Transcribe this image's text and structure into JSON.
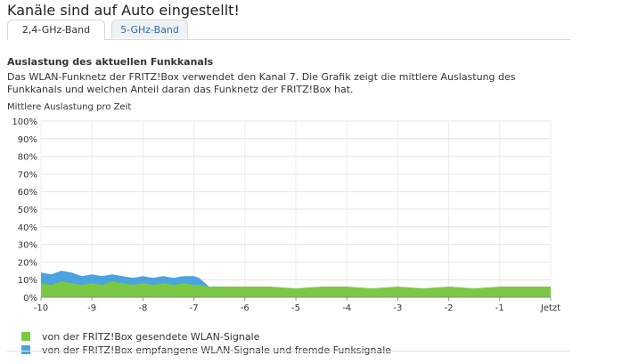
{
  "page": {
    "title": "Kanäle sind auf Auto eingestellt!"
  },
  "tabs": [
    {
      "label": "2,4-GHz-Band",
      "active": true
    },
    {
      "label": "5-GHz-Band",
      "active": false
    }
  ],
  "section": {
    "heading": "Auslastung des aktuellen Funkkanals",
    "description": "Das WLAN-Funknetz der FRITZ!Box verwendet den Kanal 7. Die Grafik zeigt die mittlere Auslastung des Funkkanals und welchen Anteil daran das Funknetz der FRITZ!Box hat."
  },
  "colors": {
    "own_signal": "#7ac943",
    "foreign_signal": "#4aa3df",
    "tab_link": "#2b6ab0"
  },
  "chart_data": {
    "type": "area",
    "title": "Mittlere Auslastung pro Zeit",
    "xlabel": "",
    "ylabel": "",
    "x_ticks": [
      "-10",
      "-9",
      "-8",
      "-7",
      "-6",
      "-5",
      "-4",
      "-3",
      "-2",
      "-1",
      "Jetzt"
    ],
    "y_ticks": [
      "0%",
      "10%",
      "20%",
      "30%",
      "40%",
      "50%",
      "60%",
      "70%",
      "80%",
      "90%",
      "100%"
    ],
    "xlim": [
      -10,
      0
    ],
    "ylim": [
      0,
      100
    ],
    "grid": true,
    "legend_position": "bottom",
    "x": [
      -10,
      -9.8,
      -9.6,
      -9.4,
      -9.2,
      -9.0,
      -8.8,
      -8.6,
      -8.4,
      -8.2,
      -8.0,
      -7.8,
      -7.6,
      -7.4,
      -7.2,
      -7.0,
      -6.9,
      -6.7,
      -6.5,
      -6.0,
      -5.5,
      -5.0,
      -4.5,
      -4.0,
      -3.5,
      -3.0,
      -2.5,
      -2.0,
      -1.5,
      -1.0,
      -0.5,
      0
    ],
    "series": [
      {
        "name": "von der FRITZ!Box gesendete WLAN-Signale",
        "values": [
          8,
          7,
          9,
          8,
          7,
          8,
          7,
          9,
          8,
          7,
          8,
          7,
          8,
          7,
          8,
          7,
          7,
          6,
          6,
          6,
          6,
          5,
          6,
          6,
          5,
          6,
          5,
          6,
          5,
          6,
          6,
          6
        ]
      },
      {
        "name": "von der FRITZ!Box empfangene WLAN-Signale und fremde Funksignale",
        "values": [
          14,
          13,
          15,
          14,
          12,
          13,
          12,
          13,
          12,
          11,
          12,
          11,
          12,
          11,
          12,
          12,
          11,
          6,
          6,
          6,
          6,
          5,
          6,
          6,
          5,
          6,
          5,
          6,
          5,
          6,
          6,
          6
        ]
      }
    ]
  }
}
